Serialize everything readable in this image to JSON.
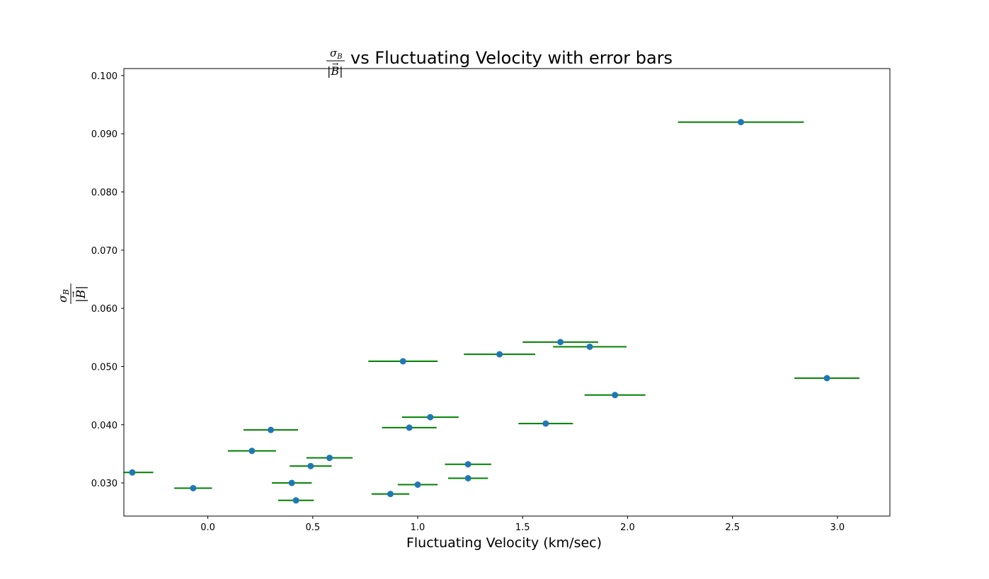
{
  "chart_data": {
    "type": "scatter",
    "title_prefix_numerator": "σ",
    "title_prefix_numerator_sub": "B",
    "title_prefix_denominator": "|B|",
    "title": "vs Fluctuating Velocity with error bars",
    "xlabel": "Fluctuating Velocity (km/sec)",
    "ylabel_numerator": "σ",
    "ylabel_numerator_sub": "B",
    "ylabel_denominator": "|B|",
    "xlim": [
      -0.4,
      3.25
    ],
    "ylim": [
      0.0243,
      0.1012
    ],
    "x_ticks": [
      0.0,
      0.5,
      1.0,
      1.5,
      2.0,
      2.5,
      3.0
    ],
    "x_tick_labels": [
      "0.0",
      "0.5",
      "1.0",
      "1.5",
      "2.0",
      "2.5",
      "3.0"
    ],
    "y_ticks": [
      0.03,
      0.04,
      0.05,
      0.06,
      0.07,
      0.08,
      0.09,
      0.1
    ],
    "y_tick_labels": [
      "0.030",
      "0.040",
      "0.050",
      "0.060",
      "0.070",
      "0.080",
      "0.090",
      "0.100"
    ],
    "grid": false,
    "marker_color": "#1f77b4",
    "errorbar_color": "#008000",
    "points": [
      {
        "x": -0.36,
        "y": 0.0318,
        "xerr": 0.1
      },
      {
        "x": -0.07,
        "y": 0.0291,
        "xerr": 0.09
      },
      {
        "x": 0.21,
        "y": 0.0355,
        "xerr": 0.115
      },
      {
        "x": 0.3,
        "y": 0.0391,
        "xerr": 0.13
      },
      {
        "x": 0.4,
        "y": 0.03,
        "xerr": 0.095
      },
      {
        "x": 0.42,
        "y": 0.027,
        "xerr": 0.085
      },
      {
        "x": 0.49,
        "y": 0.0329,
        "xerr": 0.1
      },
      {
        "x": 0.58,
        "y": 0.0343,
        "xerr": 0.11
      },
      {
        "x": 0.87,
        "y": 0.0281,
        "xerr": 0.09
      },
      {
        "x": 0.93,
        "y": 0.0509,
        "xerr": 0.165
      },
      {
        "x": 0.96,
        "y": 0.0395,
        "xerr": 0.13
      },
      {
        "x": 1.0,
        "y": 0.0297,
        "xerr": 0.095
      },
      {
        "x": 1.06,
        "y": 0.0413,
        "xerr": 0.135
      },
      {
        "x": 1.24,
        "y": 0.0308,
        "xerr": 0.095
      },
      {
        "x": 1.24,
        "y": 0.0332,
        "xerr": 0.11
      },
      {
        "x": 1.39,
        "y": 0.0521,
        "xerr": 0.17
      },
      {
        "x": 1.61,
        "y": 0.0402,
        "xerr": 0.13
      },
      {
        "x": 1.68,
        "y": 0.0542,
        "xerr": 0.18
      },
      {
        "x": 1.82,
        "y": 0.0534,
        "xerr": 0.175
      },
      {
        "x": 1.94,
        "y": 0.0451,
        "xerr": 0.145
      },
      {
        "x": 2.54,
        "y": 0.092,
        "xerr": 0.3
      },
      {
        "x": 2.95,
        "y": 0.048,
        "xerr": 0.155
      }
    ]
  }
}
